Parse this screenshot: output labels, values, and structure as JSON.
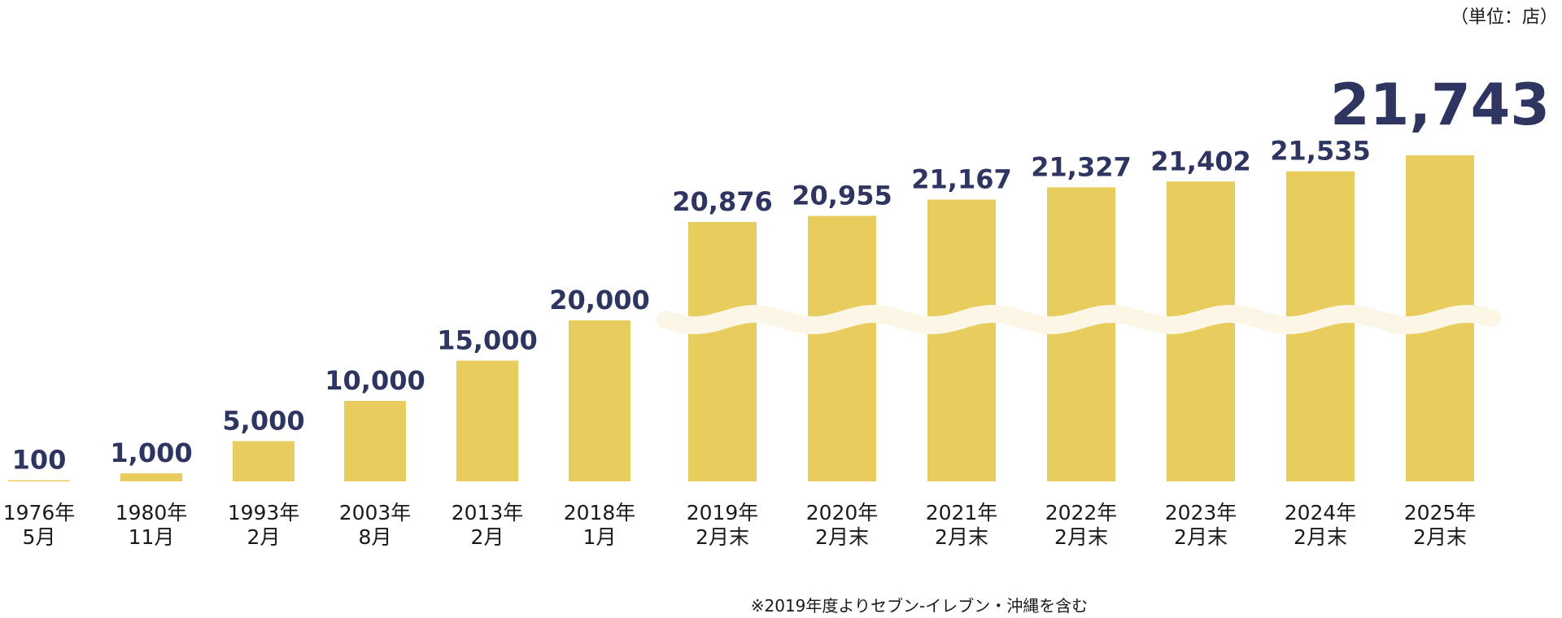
{
  "unit_label": "（単位：店）",
  "footnote": "※2019年度よりセブン‐イレブン・沖縄を含む",
  "colors": {
    "bar": "#e9cc5e",
    "value_text": "#2e3560",
    "break_mark": "#fbf6e6",
    "label_text": "#1a1a1a"
  },
  "chart_data": {
    "type": "bar",
    "categories": [
      [
        "1976年",
        "5月"
      ],
      [
        "1980年",
        "11月"
      ],
      [
        "1993年",
        "2月"
      ],
      [
        "2003年",
        "8月"
      ],
      [
        "2013年",
        "2月"
      ],
      [
        "2018年",
        "1月"
      ],
      [
        "2019年",
        "2月末"
      ],
      [
        "2020年",
        "2月末"
      ],
      [
        "2021年",
        "2月末"
      ],
      [
        "2022年",
        "2月末"
      ],
      [
        "2023年",
        "2月末"
      ],
      [
        "2024年",
        "2月末"
      ],
      [
        "2025年",
        "2月末"
      ]
    ],
    "values": [
      100,
      1000,
      5000,
      10000,
      15000,
      20000,
      20876,
      20955,
      21167,
      21327,
      21402,
      21535,
      21743
    ],
    "value_labels": [
      "100",
      "1,000",
      "5,000",
      "10,000",
      "15,000",
      "20,000",
      "20,876",
      "20,955",
      "21,167",
      "21,327",
      "21,402",
      "21,535",
      "21,743"
    ],
    "highlight_index": 12,
    "axis_break": "between 20,000 and 20,876 (bars from 2019年 onward drawn with a broken axis)",
    "ylabel": "",
    "grid": false,
    "legend": "none"
  }
}
